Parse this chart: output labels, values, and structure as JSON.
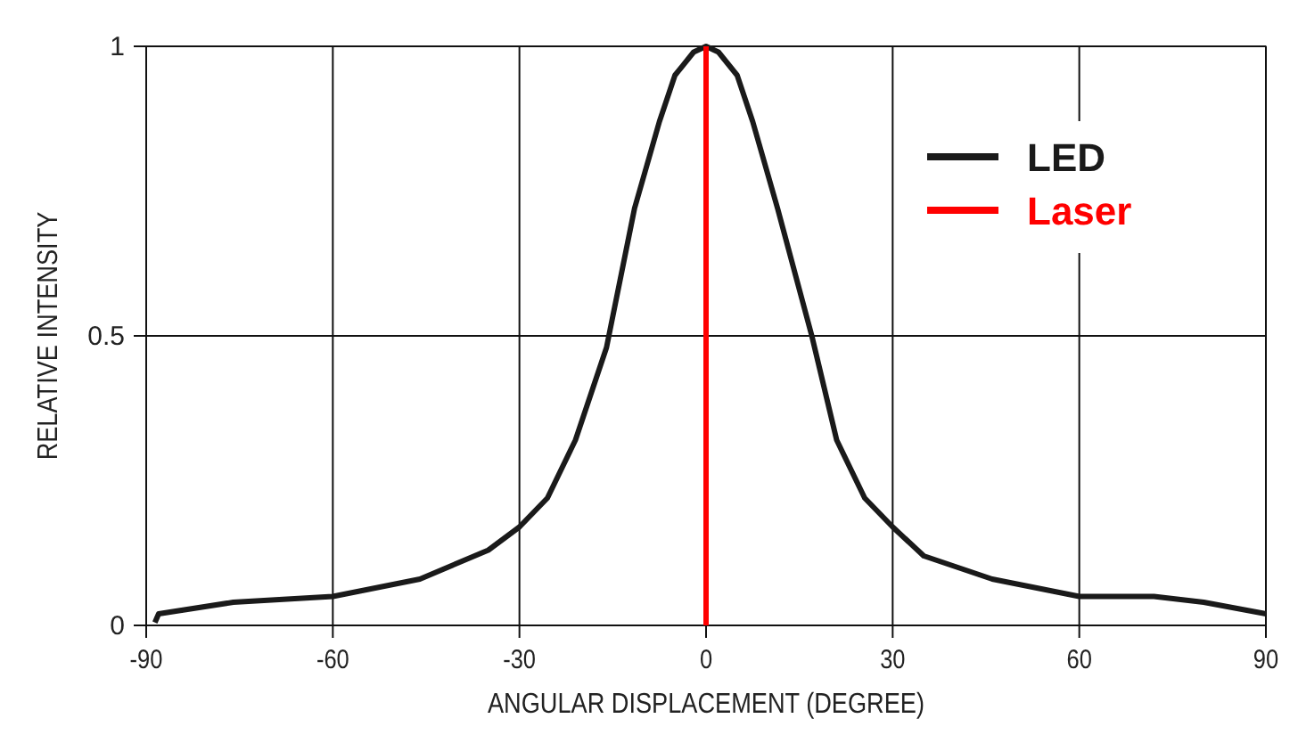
{
  "chart_data": {
    "type": "line",
    "xlabel": "ANGULAR DISPLACEMENT (DEGREE)",
    "ylabel": "RELATIVE INTENSITY",
    "xlim": [
      -90,
      90
    ],
    "xticks": [
      -90,
      -60,
      -30,
      0,
      30,
      60,
      90
    ],
    "ylim": [
      0,
      1
    ],
    "yticks": [
      0,
      0.5,
      1
    ],
    "grid": true,
    "legend": "top right",
    "series": [
      {
        "name": "LED",
        "color": "#1a1a1a",
        "x": [
          -88.6,
          -88,
          -76,
          -60,
          -46,
          -35,
          -30,
          -25.5,
          -21,
          -16,
          -11.5,
          -7.5,
          -5,
          -2,
          0,
          2,
          5,
          7.5,
          11.5,
          17,
          21,
          25.5,
          30,
          35,
          46,
          60,
          72,
          80,
          90
        ],
        "values": [
          0.005,
          0.02,
          0.04,
          0.05,
          0.08,
          0.13,
          0.17,
          0.22,
          0.32,
          0.48,
          0.72,
          0.87,
          0.95,
          0.99,
          1,
          0.99,
          0.95,
          0.87,
          0.72,
          0.5,
          0.32,
          0.22,
          0.17,
          0.12,
          0.08,
          0.05,
          0.05,
          0.04,
          0.02
        ]
      },
      {
        "name": "Laser",
        "color": "#ff0000",
        "x": [
          0,
          0
        ],
        "values": [
          0,
          1
        ]
      }
    ]
  }
}
